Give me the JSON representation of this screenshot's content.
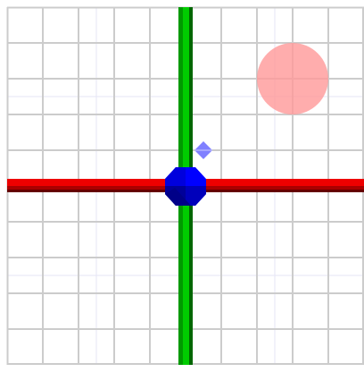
{
  "scene": {
    "background": "#ffffff",
    "grid": {
      "visible": true,
      "line_color": "#cccccc",
      "faint_line_color": "#e6e6f5"
    },
    "axes": {
      "x_axis": {
        "color": "#dd0000",
        "shadow_color": "#660000",
        "label": ""
      },
      "y_axis": {
        "color": "#00cc00",
        "shadow_color": "#006600",
        "label": ""
      }
    },
    "objects": [
      {
        "name": "origin-gizmo",
        "shape": "polyhedron",
        "color": "#0000ff"
      },
      {
        "name": "target-marker",
        "shape": "circle",
        "color": "#ff9999",
        "opacity": 0.8
      },
      {
        "name": "move-handle",
        "shape": "diamond",
        "color": "#8080ff"
      }
    ]
  }
}
